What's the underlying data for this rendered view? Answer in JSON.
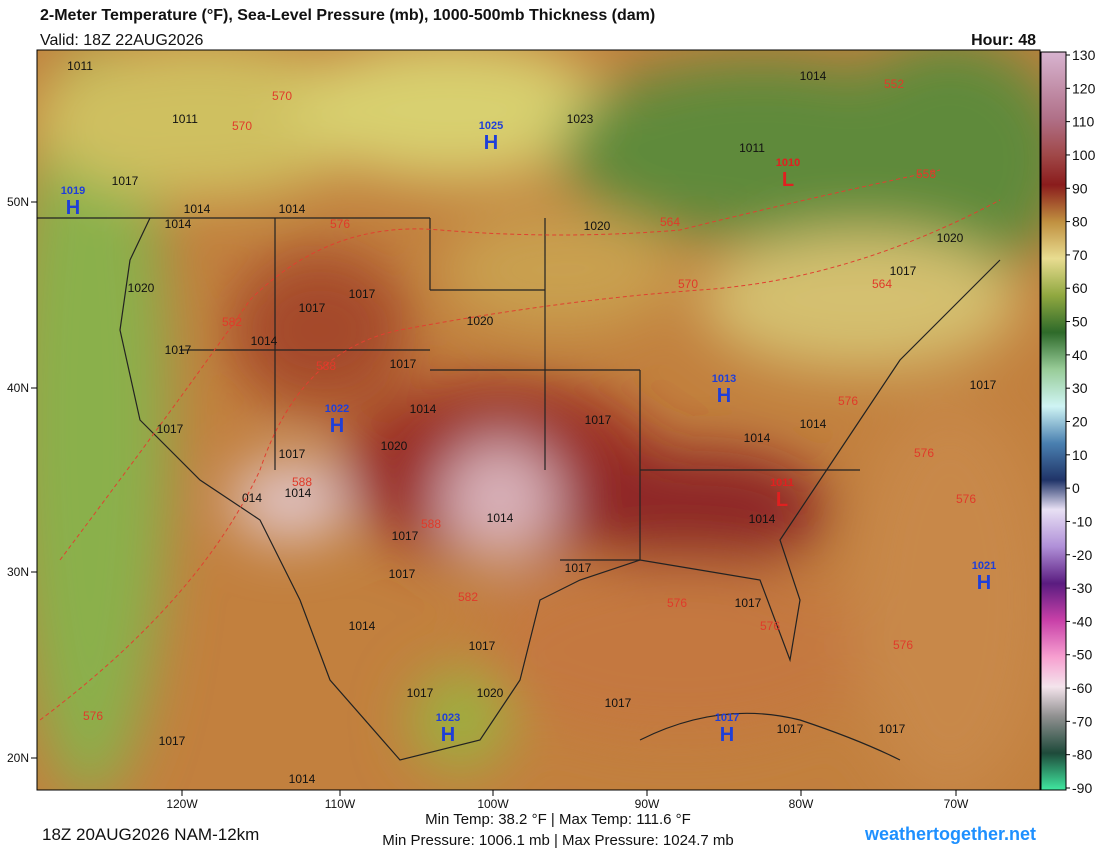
{
  "header": {
    "title": "2-Meter Temperature (°F), Sea-Level Pressure (mb), 1000-500mb Thickness (dam)",
    "valid": "Valid: 18Z 22AUG2026",
    "hour": "Hour: 48"
  },
  "colorbar": {
    "ticks": [
      130,
      120,
      110,
      100,
      90,
      80,
      70,
      60,
      50,
      40,
      30,
      20,
      10,
      0,
      -10,
      -20,
      -30,
      -40,
      -50,
      -60,
      -70,
      -80,
      -90
    ]
  },
  "axes": {
    "lon_labels": [
      "120W",
      "110W",
      "100W",
      "90W",
      "80W",
      "70W"
    ],
    "lat_labels": [
      "50N",
      "40N",
      "30N",
      "20N"
    ]
  },
  "pressure_centers": [
    {
      "type": "H",
      "value": 1025
    },
    {
      "type": "H",
      "value": 1019
    },
    {
      "type": "L",
      "value": 1010
    },
    {
      "type": "H",
      "value": 1013
    },
    {
      "type": "H",
      "value": 1022
    },
    {
      "type": "L",
      "value": 1011
    },
    {
      "type": "H",
      "value": 1021
    },
    {
      "type": "H",
      "value": 1023
    },
    {
      "type": "H",
      "value": 1017
    }
  ],
  "isobar_labels": [
    1011,
    1011,
    1017,
    1014,
    1014,
    1014,
    1023,
    1014,
    1011,
    1020,
    1020,
    1017,
    1020,
    1017,
    1017,
    1014,
    1017,
    1020,
    1017,
    1014,
    1017,
    1014,
    1014,
    1017,
    1017,
    1020,
    1017,
    1014,
    "014",
    1014,
    1014,
    1017,
    1017,
    1017,
    1014,
    1017,
    1017,
    1020,
    1017,
    1017,
    1017,
    1017,
    1017,
    1014
  ],
  "thickness_labels": [
    570,
    570,
    552,
    558,
    576,
    564,
    570,
    564,
    582,
    588,
    576,
    576,
    576,
    588,
    588,
    582,
    576,
    576,
    576,
    576
  ],
  "footer": {
    "run": "18Z 20AUG2026 NAM-12km",
    "temps": "Min Temp:  38.2 °F | Max Temp: 111.6 °F",
    "pressures": "Min Pressure: 1006.1 mb | Max Pressure: 1024.7 mb",
    "site": "weathertogether.net"
  }
}
